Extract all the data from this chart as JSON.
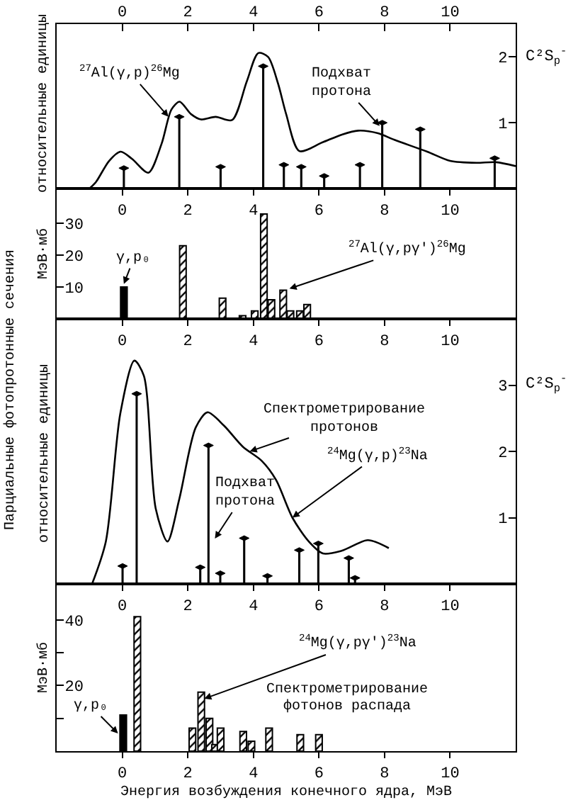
{
  "chart_data": [
    {
      "type": "line",
      "xlim": [
        -2,
        12
      ],
      "xticks": [
        0,
        2,
        4,
        6,
        8,
        10
      ],
      "x2lim": [
        -2,
        12
      ],
      "x2ticks": [
        0,
        2,
        4,
        6,
        8,
        10
      ],
      "ylabel": "C²S$_{p}$$^{-}$",
      "ylim": [
        0,
        2.5
      ],
      "yticks": [
        1,
        2
      ],
      "series": [
        {
          "color": "#000000",
          "x": [
            -1.0,
            -0.8,
            -0.4,
            -0.05,
            0.3,
            0.8,
            1.2,
            1.5,
            1.75,
            2.1,
            2.4,
            2.85,
            3.35,
            3.8,
            4.15,
            4.45,
            4.75,
            5.0,
            5.4,
            6.1,
            6.7,
            7.2,
            7.8,
            8.3,
            9.3,
            10.0,
            10.8,
            11.4,
            12.0
          ],
          "values": [
            0,
            0.1,
            0.42,
            0.56,
            0.45,
            0.24,
            0.68,
            1.2,
            1.32,
            1.13,
            1.05,
            1.09,
            1.04,
            1.63,
            2.06,
            2.0,
            1.6,
            1.13,
            0.57,
            0.7,
            0.82,
            0.88,
            0.84,
            0.74,
            0.56,
            0.42,
            0.39,
            0.4,
            0.34
          ]
        },
        {
          "type": "lollipop",
          "color": "#000000",
          "x": [
            0.05,
            1.74,
            3.0,
            4.3,
            4.93,
            5.46,
            6.16,
            7.25,
            7.93,
            9.09,
            11.36
          ],
          "values": [
            0.31,
            1.09,
            0.33,
            1.86,
            0.36,
            0.33,
            0.19,
            0.36,
            1.0,
            0.9,
            0.46
          ]
        }
      ],
      "annotations": [
        {
          "text": "$^{27}$Al(γ,p)$^{26}$Mg",
          "x": 1.41,
          "y": 1.09
        },
        {
          "text": "Подхват\nпротона",
          "x": 7.85,
          "y": 0.95
        },
        "относительные единицы"
      ]
    },
    {
      "type": "bar",
      "xlim": [
        -2,
        12
      ],
      "xticks": [
        0,
        2,
        4,
        6,
        8,
        10
      ],
      "ylim": [
        0,
        41
      ],
      "yticks": [
        10,
        20,
        30
      ],
      "ylabel": "МэВ·мб",
      "series": [
        {
          "color": "#000000",
          "x": [
            0.05
          ],
          "values": [
            10
          ]
        },
        {
          "color": "#000000",
          "x": [
            1.85,
            3.06,
            3.67,
            4.04,
            4.32,
            4.55,
            4.91,
            5.13,
            5.42,
            5.64
          ],
          "values": [
            23,
            6.5,
            1,
            2.5,
            33,
            6,
            9,
            2.5,
            2.5,
            4.5
          ]
        }
      ],
      "annotations": [
        {
          "text": "γ,p₀",
          "x": 0.05,
          "y": 11
        },
        {
          "text": "$^{27}$Al(γ,pγ')$^{26}$Mg",
          "x": 5.1,
          "y": 9.5
        }
      ]
    },
    {
      "type": "line",
      "xlim": [
        -2,
        12
      ],
      "xticks": [
        0,
        2,
        4,
        6,
        8,
        10
      ],
      "ylabel": "C²S$_{p}$$^{-}$",
      "ylim": [
        0,
        4
      ],
      "yticks": [
        1,
        2,
        3
      ],
      "series": [
        {
          "color": "#000000",
          "x": [
            -0.92,
            -0.5,
            -0.06,
            0.37,
            0.66,
            1.02,
            1.38,
            1.74,
            2.24,
            2.6,
            3.1,
            3.68,
            4.25,
            4.69,
            5.19,
            5.69,
            6.12,
            6.69,
            7.49,
            8.13
          ],
          "values": [
            0,
            0.64,
            2.57,
            3.37,
            3.14,
            1.14,
            0.64,
            1.28,
            2.36,
            2.59,
            2.39,
            2.07,
            1.86,
            1.57,
            1.0,
            0.64,
            0.46,
            0.5,
            0.66,
            0.54
          ]
        },
        {
          "type": "lollipop",
          "color": "#000000",
          "x": [
            0.01,
            0.44,
            2.38,
            2.63,
            2.99,
            3.72,
            4.43,
            5.4,
            5.98,
            6.91,
            7.1
          ],
          "values": [
            0.27,
            2.87,
            0.25,
            2.09,
            0.16,
            0.69,
            0.12,
            0.51,
            0.61,
            0.39,
            0.09
          ]
        }
      ],
      "annotations": [
        {
          "text": "Спектрометрирование\nпротонов",
          "x": 3.89,
          "y": 2.0
        },
        {
          "text": "$^{24}$Mg(γ,p)$^{23}$Na",
          "x": 5.19,
          "y": 1.0
        },
        "Подхват\nпротона",
        "Парциальные фотопротонные сечения",
        "относительные единицы"
      ]
    },
    {
      "type": "bar",
      "xlim": [
        -2,
        12
      ],
      "xticks": [
        0,
        2,
        4,
        6,
        8,
        10
      ],
      "ylim": [
        0,
        51
      ],
      "yticks": [
        {
          "value": 10,
          "label": null
        },
        20,
        {
          "value": 30,
          "label": null
        },
        40
      ],
      "ylabel": "МэВ·мб",
      "xlabel": "Энергия возбуждения конечного ядра, МэВ",
      "series": [
        {
          "color": "#000000",
          "x": [
            0.03
          ],
          "values": [
            11
          ]
        },
        {
          "color": "#000000",
          "x": [
            0.46,
            2.14,
            2.41,
            2.66,
            2.83,
            3.0,
            3.69,
            3.94,
            4.48,
            5.43,
            6.0
          ],
          "values": [
            41,
            7,
            18,
            10,
            2,
            7,
            6,
            3,
            7,
            5,
            5
          ]
        }
      ],
      "annotations": [
        {
          "text": "γ,p₀",
          "x": -0.13,
          "y": 5.4
        },
        {
          "text": "$^{24}$Mg(γ,pγ')$^{23}$Na",
          "x": 2.5,
          "y": 16
        },
        "Спектрометрирование\nфотонов распада"
      ]
    }
  ]
}
